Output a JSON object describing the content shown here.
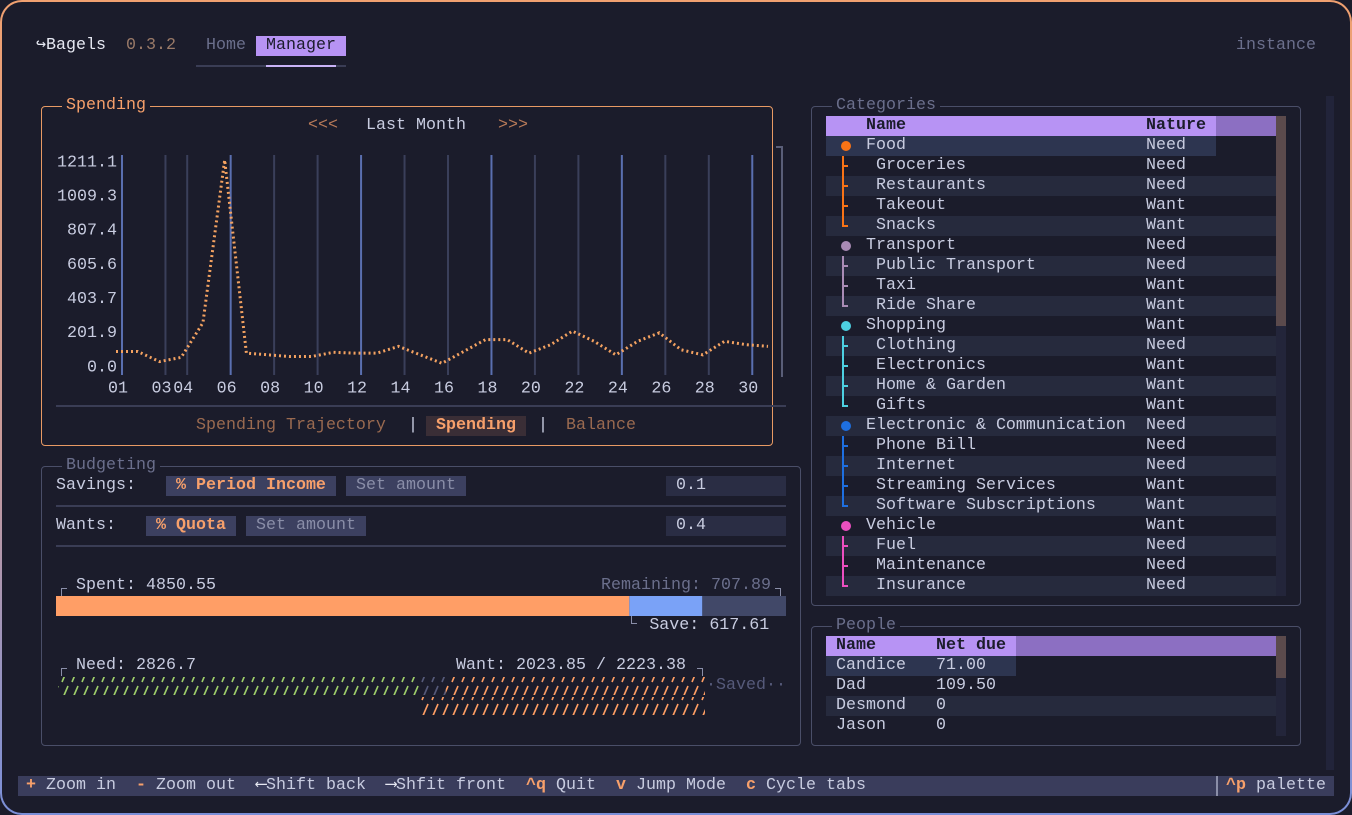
{
  "header": {
    "app": "↪Bagels",
    "version": "0.3.2",
    "tabs": [
      "Home",
      "Manager"
    ],
    "instance": "instance"
  },
  "spending": {
    "title": "Spending",
    "nav_prev": "<<<",
    "period": "Last Month",
    "nav_next": ">>>",
    "views": [
      "Spending Trajectory",
      "Spending",
      "Balance"
    ],
    "separator": "|"
  },
  "chart_data": {
    "type": "line",
    "color": "#f4a261",
    "grid": true,
    "x": [
      1,
      2,
      3,
      4,
      5,
      6,
      7,
      8,
      9,
      10,
      11,
      12,
      13,
      14,
      15,
      16,
      17,
      18,
      19,
      20,
      21,
      22,
      23,
      24,
      25,
      26,
      27,
      28,
      29,
      30,
      31
    ],
    "values": [
      80,
      80,
      20,
      45,
      250,
      1211.1,
      70,
      60,
      50,
      50,
      75,
      70,
      70,
      110,
      60,
      10,
      80,
      150,
      150,
      70,
      120,
      200,
      140,
      60,
      140,
      190,
      90,
      60,
      140,
      120,
      110
    ],
    "xlim": [
      1,
      31
    ],
    "ylim": [
      0,
      1211.1
    ],
    "xticks": [
      {
        "value": 1,
        "label": "01"
      },
      {
        "value": 3,
        "label": "03"
      },
      {
        "value": 4,
        "label": "04"
      },
      {
        "value": 6,
        "label": "06"
      },
      {
        "value": 8,
        "label": "08"
      },
      10,
      12,
      14,
      16,
      18,
      20,
      22,
      24,
      26,
      28,
      30
    ],
    "yticks": [
      {
        "value": 0,
        "label": "0.0"
      },
      201.9,
      403.7,
      605.6,
      807.4,
      1009.3,
      1211.1
    ]
  },
  "budgeting": {
    "title": "Budgeting",
    "rows": [
      {
        "label": "Savings:",
        "options": [
          "% Period Income",
          "Set amount"
        ],
        "value": "0.1"
      },
      {
        "label": "Wants:",
        "options": [
          "% Quota",
          "Set amount"
        ],
        "value": "0.4"
      }
    ],
    "spent": {
      "label": "Spent:",
      "value": 4850.55
    },
    "remaining": {
      "label": "Remaining:",
      "value": 707.89
    },
    "save": {
      "label": "Save:",
      "value": 617.61
    },
    "need": {
      "label": "Need:",
      "value": 2826.7
    },
    "want": {
      "label": "Want:",
      "value": 2023.85,
      "separator": "/",
      "limit": 2223.38
    },
    "saved": "·Saved··"
  },
  "categories": {
    "title": "Categories",
    "columns": [
      "Name",
      "Nature"
    ],
    "items": [
      {
        "name": "Food",
        "nature": "Need",
        "color": "#f97316",
        "children": [
          {
            "name": "Groceries",
            "nature": "Need"
          },
          {
            "name": "Restaurants",
            "nature": "Need"
          },
          {
            "name": "Takeout",
            "nature": "Want"
          },
          {
            "name": "Snacks",
            "nature": "Want"
          }
        ]
      },
      {
        "name": "Transport",
        "nature": "Need",
        "color": "#a98bb5",
        "children": [
          {
            "name": "Public Transport",
            "nature": "Need"
          },
          {
            "name": "Taxi",
            "nature": "Want"
          },
          {
            "name": "Ride Share",
            "nature": "Want"
          }
        ]
      },
      {
        "name": "Shopping",
        "nature": "Want",
        "color": "#4dd0e1",
        "children": [
          {
            "name": "Clothing",
            "nature": "Need"
          },
          {
            "name": "Electronics",
            "nature": "Want"
          },
          {
            "name": "Home & Garden",
            "nature": "Want"
          },
          {
            "name": "Gifts",
            "nature": "Want"
          }
        ]
      },
      {
        "name": "Electronic & Communication",
        "nature": "Need",
        "color": "#1e6fe0",
        "children": [
          {
            "name": "Phone Bill",
            "nature": "Need"
          },
          {
            "name": "Internet",
            "nature": "Need"
          },
          {
            "name": "Streaming Services",
            "nature": "Want"
          },
          {
            "name": "Software Subscriptions",
            "nature": "Want"
          }
        ]
      },
      {
        "name": "Vehicle",
        "nature": "Want",
        "color": "#ec4fc0",
        "children": [
          {
            "name": "Fuel",
            "nature": "Need"
          },
          {
            "name": "Maintenance",
            "nature": "Need"
          },
          {
            "name": "Insurance",
            "nature": "Need"
          }
        ]
      }
    ]
  },
  "people": {
    "title": "People",
    "columns": [
      "Name",
      "Net due"
    ],
    "rows": [
      [
        "Candice",
        "71.00"
      ],
      [
        "Dad",
        "109.50"
      ],
      [
        "Desmond",
        "0"
      ],
      [
        "Jason",
        "0"
      ]
    ]
  },
  "footer": {
    "bindings": [
      {
        "key": "+",
        "label": "Zoom in"
      },
      {
        "key": "-",
        "label": "Zoom out"
      },
      {
        "key": "⟵",
        "label": "Shift back"
      },
      {
        "key": "⟶",
        "label": "Shfit front"
      },
      {
        "key": "^q",
        "label": "Quit"
      },
      {
        "key": "v",
        "label": "Jump Mode"
      },
      {
        "key": "c",
        "label": "Cycle tabs"
      }
    ],
    "palette": {
      "key": "^p",
      "label": "palette"
    }
  }
}
